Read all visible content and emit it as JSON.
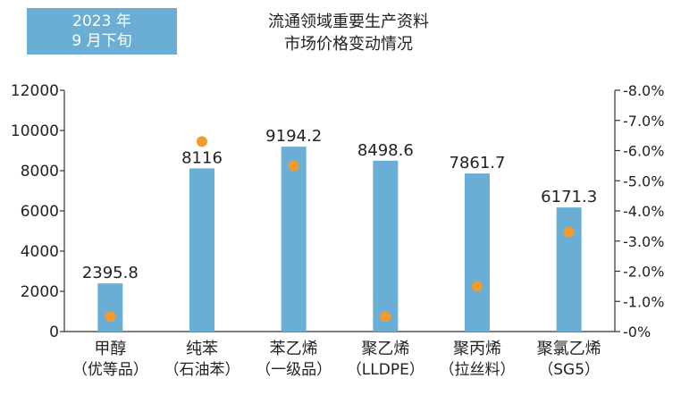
{
  "badge": {
    "line1": "2023 年",
    "line2": "9 月下旬"
  },
  "title": {
    "line1": "流通领域重要生产资料",
    "line2": "市场价格变动情况"
  },
  "colors": {
    "bar": "#6aaed6",
    "dot": "#f39a2e",
    "badge_bg": "#6aaed6",
    "text": "#222222"
  },
  "chart_data": {
    "type": "bar",
    "categories": [
      {
        "line1": "甲醇",
        "line2": "（优等品）"
      },
      {
        "line1": "纯苯",
        "line2": "（石油苯）"
      },
      {
        "line1": "苯乙烯",
        "line2": "（一级品）"
      },
      {
        "line1": "聚乙烯",
        "line2": "（LLDPE）"
      },
      {
        "line1": "聚丙烯",
        "line2": "（拉丝料）"
      },
      {
        "line1": "聚氯乙烯",
        "line2": "（SG5）"
      }
    ],
    "values": [
      2395.8,
      8116,
      9194.2,
      8498.6,
      7861.7,
      6171.3
    ],
    "value_labels": [
      "2395.8",
      "8116",
      "9194.2",
      "8498.6",
      "7861.7",
      "6171.3"
    ],
    "dot_values": [
      -0.5,
      -6.3,
      -5.5,
      -0.5,
      -1.5,
      -3.3
    ],
    "ylim": [
      0,
      12000
    ],
    "yticks": [
      "0",
      "2000",
      "4000",
      "6000",
      "8000",
      "10000",
      "12000"
    ],
    "y2lim": [
      0,
      -8
    ],
    "y2ticks": [
      "-0%",
      "-1.0%",
      "-2.0%",
      "-3.0%",
      "-4.0%",
      "-5.0%",
      "-6.0%",
      "-7.0%",
      "-8.0%"
    ],
    "grid": false
  }
}
